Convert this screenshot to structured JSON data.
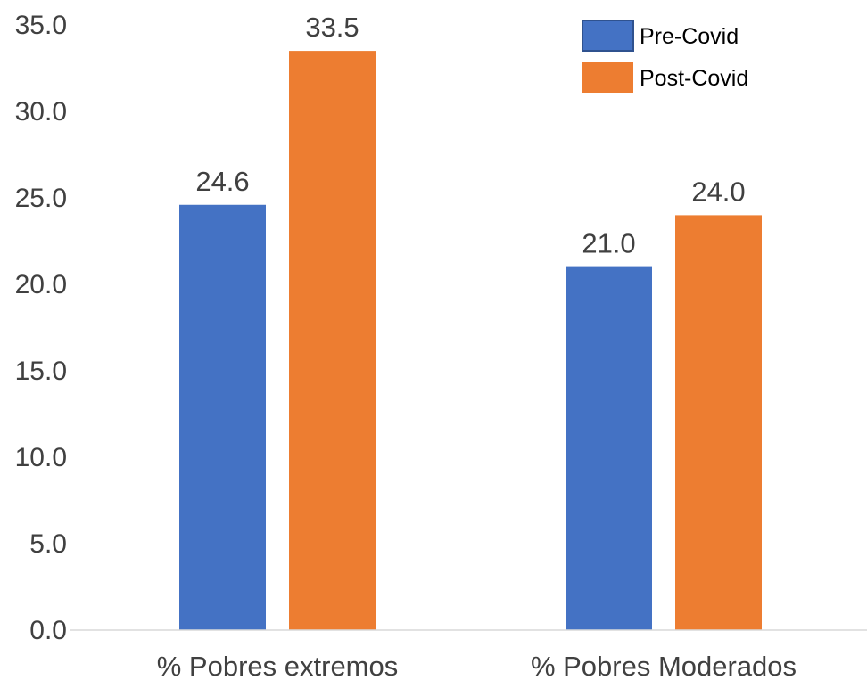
{
  "chart_data": {
    "type": "bar",
    "categories": [
      "% Pobres extremos",
      "% Pobres Moderados"
    ],
    "series": [
      {
        "name": "Pre-Covid",
        "values": [
          24.6,
          21.0
        ],
        "color": "#4472C4"
      },
      {
        "name": "Post-Covid",
        "values": [
          33.5,
          24.0
        ],
        "color": "#ED7D31"
      }
    ],
    "ylim": [
      0,
      35
    ],
    "yticks": [
      "0.0",
      "5.0",
      "10.0",
      "15.0",
      "20.0",
      "25.0",
      "30.0",
      "35.0"
    ],
    "data_labels": [
      [
        "24.6",
        "21.0"
      ],
      [
        "33.5",
        "24.0"
      ]
    ],
    "legend_position": "top-right",
    "grid": false,
    "title": "",
    "xlabel": "",
    "ylabel": ""
  }
}
